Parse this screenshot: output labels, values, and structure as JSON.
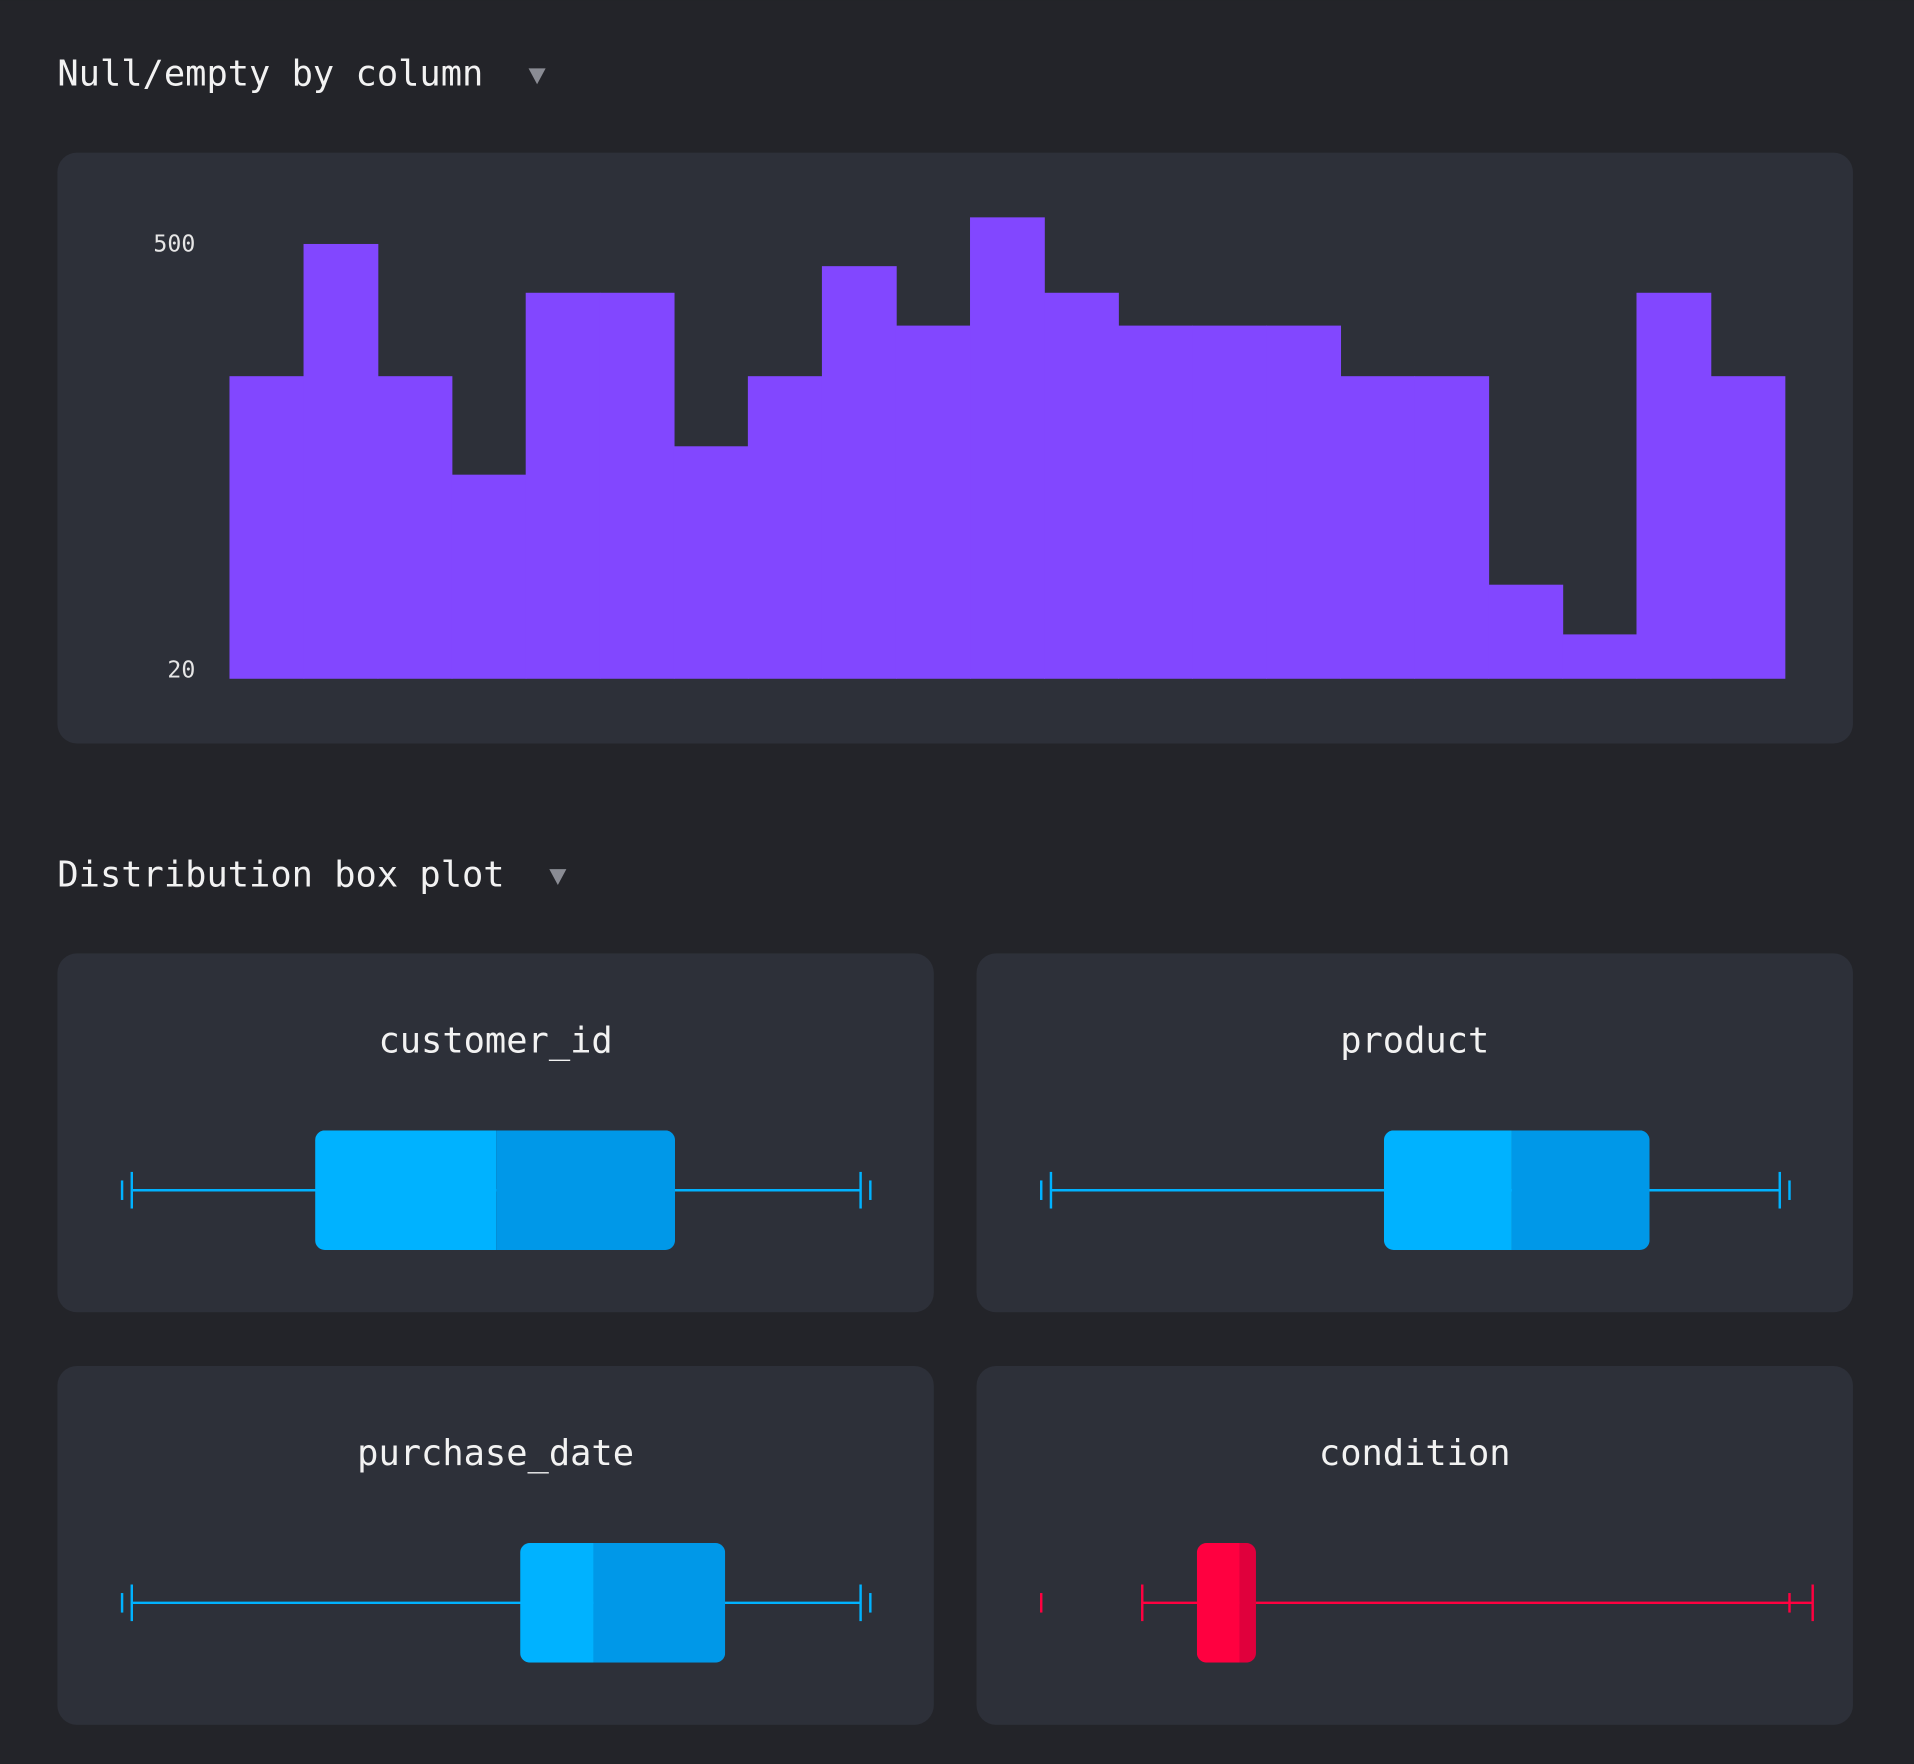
{
  "chart_data": [
    {
      "type": "bar",
      "title": "Null/empty by column",
      "categories": [
        null,
        null,
        null,
        null,
        null,
        null,
        null,
        null,
        null,
        null,
        null,
        null,
        null,
        null,
        null,
        null,
        null,
        null,
        null,
        null,
        null
      ],
      "values": [
        351,
        500,
        351,
        240,
        445,
        445,
        272,
        351,
        475,
        408,
        530,
        445,
        408,
        408,
        408,
        351,
        351,
        116,
        60,
        445,
        351
      ],
      "color": "#8247ff",
      "ylim": [
        10,
        530
      ],
      "yticks": [
        20,
        500
      ],
      "grid": false
    },
    {
      "type": "box",
      "title": "Distribution box plot",
      "xlim": [
        0,
        100
      ],
      "boxes": [
        {
          "name": "customer_id",
          "min": 1.3,
          "q1": 25.8,
          "median": 50,
          "q3": 73.9,
          "max": 98.7,
          "colors": [
            "#00b2ff",
            "#0098e8"
          ]
        },
        {
          "name": "product",
          "min": 1.3,
          "q1": 45.8,
          "median": 62.9,
          "q3": 81.3,
          "max": 98.7,
          "colors": [
            "#00b2ff",
            "#0098e8"
          ]
        },
        {
          "name": "purchase_date",
          "min": 1.3,
          "q1": 53.2,
          "median": 63,
          "q3": 80.6,
          "max": 98.7,
          "colors": [
            "#00b2ff",
            "#0098e8"
          ]
        },
        {
          "name": "condition",
          "min": 13.5,
          "q1": 20.8,
          "median": 26.5,
          "q3": 28.7,
          "max": 103.1,
          "colors": [
            "#ff0040",
            "#e0003c"
          ]
        }
      ]
    }
  ]
}
